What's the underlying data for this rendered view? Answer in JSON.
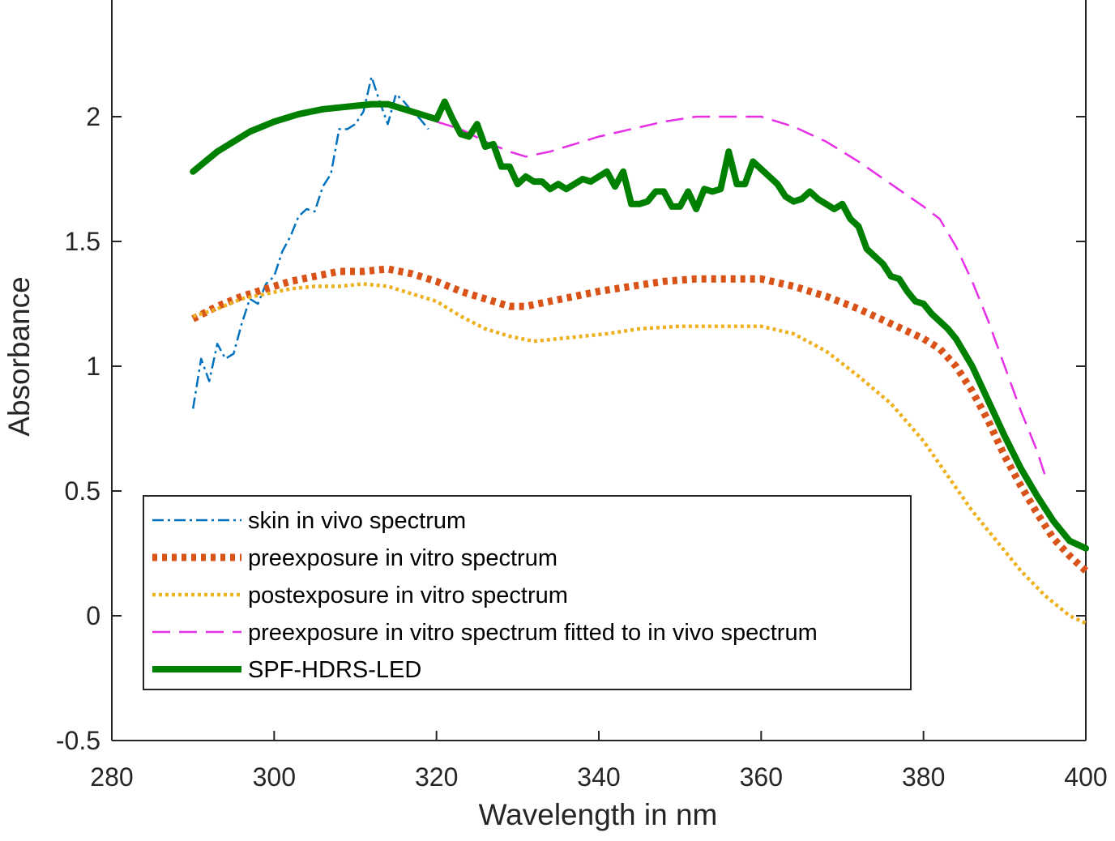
{
  "chart_data": {
    "type": "line",
    "title": "",
    "xlabel": "Wavelength in nm",
    "ylabel": "Absorbance",
    "xlim": [
      280,
      400
    ],
    "ylim": [
      -0.5,
      2.5
    ],
    "xticks": [
      280,
      300,
      320,
      340,
      360,
      380,
      400
    ],
    "yticks": [
      -0.5,
      0,
      0.5,
      1,
      1.5,
      2
    ],
    "ytick_labels": [
      "-0.5",
      "0",
      "0.5",
      "1",
      "1.5",
      "2"
    ],
    "grid": false,
    "legend_position": "lower-left",
    "series": [
      {
        "name": "skin in vivo spectrum",
        "color": "#0072BD",
        "style": "dashdot",
        "x": [
          290,
          291,
          292,
          293,
          294,
          295,
          296,
          297,
          298,
          299,
          300,
          301,
          302,
          303,
          304,
          305,
          306,
          307,
          308,
          309,
          310,
          311,
          312,
          313,
          314,
          315,
          316,
          317,
          318,
          319
        ],
        "y": [
          0.83,
          1.03,
          0.94,
          1.09,
          1.03,
          1.05,
          1.17,
          1.27,
          1.25,
          1.33,
          1.36,
          1.46,
          1.52,
          1.6,
          1.63,
          1.62,
          1.72,
          1.77,
          1.95,
          1.95,
          1.97,
          2.02,
          2.16,
          2.06,
          1.97,
          2.09,
          2.06,
          2.02,
          1.99,
          1.95
        ]
      },
      {
        "name": "preexposure in vitro spectrum",
        "color": "#D95319",
        "style": "dotted-thick",
        "x": [
          290,
          293,
          296,
          299,
          302,
          305,
          308,
          311,
          314,
          317,
          320,
          323,
          326,
          329,
          331,
          334,
          337,
          340,
          344,
          348,
          352,
          356,
          360,
          364,
          368,
          372,
          376,
          380,
          382,
          384,
          386,
          388,
          390,
          392,
          394,
          396,
          398,
          400
        ],
        "y": [
          1.19,
          1.24,
          1.28,
          1.31,
          1.34,
          1.36,
          1.38,
          1.38,
          1.39,
          1.37,
          1.34,
          1.3,
          1.27,
          1.24,
          1.24,
          1.26,
          1.28,
          1.3,
          1.32,
          1.34,
          1.35,
          1.35,
          1.35,
          1.32,
          1.28,
          1.23,
          1.17,
          1.11,
          1.07,
          1.0,
          0.9,
          0.78,
          0.64,
          0.52,
          0.41,
          0.31,
          0.24,
          0.18
        ]
      },
      {
        "name": "postexposure in vitro spectrum",
        "color": "#EDB120",
        "style": "dotted",
        "x": [
          290,
          293,
          296,
          299,
          302,
          305,
          308,
          311,
          314,
          317,
          320,
          323,
          326,
          329,
          332,
          335,
          338,
          341,
          345,
          350,
          355,
          360,
          364,
          368,
          372,
          376,
          380,
          383,
          386,
          389,
          392,
          395,
          398,
          400
        ],
        "y": [
          1.2,
          1.23,
          1.27,
          1.29,
          1.31,
          1.32,
          1.32,
          1.33,
          1.32,
          1.29,
          1.26,
          1.2,
          1.15,
          1.12,
          1.1,
          1.11,
          1.12,
          1.13,
          1.15,
          1.16,
          1.16,
          1.16,
          1.13,
          1.06,
          0.96,
          0.85,
          0.7,
          0.56,
          0.42,
          0.3,
          0.18,
          0.08,
          0.0,
          -0.03
        ]
      },
      {
        "name": "preexposure in vitro spectrum fitted to in vivo spectrum",
        "color": "#E62FE6",
        "style": "dashed",
        "x": [
          320,
          323,
          326,
          329,
          331,
          334,
          337,
          340,
          344,
          348,
          352,
          356,
          360,
          364,
          368,
          372,
          376,
          380,
          382,
          384,
          386,
          388,
          390,
          392,
          394,
          395
        ],
        "y": [
          1.98,
          1.95,
          1.9,
          1.86,
          1.84,
          1.86,
          1.89,
          1.92,
          1.95,
          1.98,
          2.0,
          2.0,
          2.0,
          1.96,
          1.9,
          1.82,
          1.73,
          1.64,
          1.59,
          1.48,
          1.34,
          1.18,
          1.0,
          0.82,
          0.66,
          0.56
        ]
      },
      {
        "name": "SPF-HDRS-LED",
        "color": "#008000",
        "style": "solid-thick",
        "x": [
          290,
          293,
          297,
          300,
          303,
          306,
          309,
          312,
          314,
          317,
          320,
          321,
          322,
          323,
          324,
          325,
          326,
          327,
          328,
          329,
          330,
          331,
          332,
          333,
          334,
          335,
          336,
          337,
          338,
          339,
          340,
          341,
          342,
          343,
          344,
          345,
          346,
          347,
          348,
          349,
          350,
          351,
          352,
          353,
          354,
          355,
          356,
          357,
          358,
          359,
          360,
          361,
          362,
          363,
          364,
          365,
          366,
          367,
          368,
          369,
          370,
          371,
          372,
          373,
          374,
          375,
          376,
          377,
          378,
          379,
          380,
          381,
          382,
          383,
          384,
          386,
          388,
          390,
          392,
          394,
          396,
          398,
          400
        ],
        "y": [
          1.78,
          1.86,
          1.94,
          1.98,
          2.01,
          2.03,
          2.04,
          2.05,
          2.05,
          2.02,
          1.99,
          2.06,
          1.99,
          1.93,
          1.92,
          1.97,
          1.88,
          1.89,
          1.8,
          1.8,
          1.73,
          1.76,
          1.74,
          1.74,
          1.71,
          1.73,
          1.71,
          1.73,
          1.75,
          1.74,
          1.76,
          1.78,
          1.72,
          1.78,
          1.65,
          1.65,
          1.66,
          1.7,
          1.7,
          1.64,
          1.64,
          1.7,
          1.63,
          1.71,
          1.7,
          1.71,
          1.86,
          1.73,
          1.73,
          1.82,
          1.79,
          1.76,
          1.73,
          1.68,
          1.66,
          1.67,
          1.7,
          1.67,
          1.65,
          1.63,
          1.65,
          1.59,
          1.56,
          1.47,
          1.44,
          1.41,
          1.36,
          1.35,
          1.3,
          1.26,
          1.25,
          1.21,
          1.18,
          1.15,
          1.11,
          1.0,
          0.86,
          0.72,
          0.59,
          0.48,
          0.38,
          0.3,
          0.27
        ]
      }
    ]
  }
}
